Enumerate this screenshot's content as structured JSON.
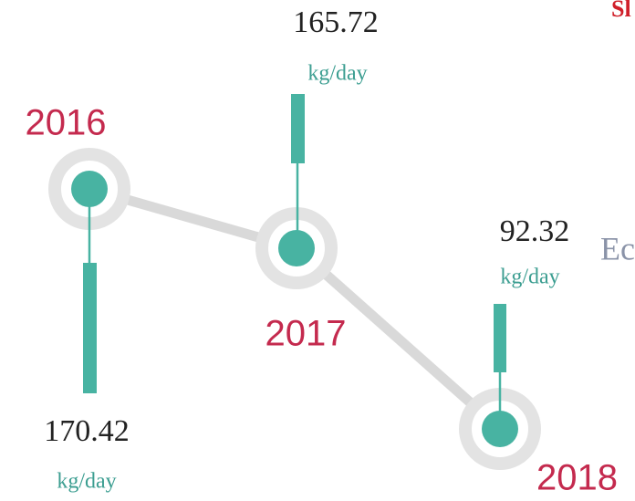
{
  "fragments": {
    "top_right": "Sl",
    "right": "Ec"
  },
  "nodes": [
    {
      "year": "2016",
      "value": 170.42,
      "unit": "kg/day"
    },
    {
      "year": "2017",
      "value": 165.72,
      "unit": "kg/day"
    },
    {
      "year": "2018",
      "value": 92.32,
      "unit": "kg/day"
    }
  ]
}
